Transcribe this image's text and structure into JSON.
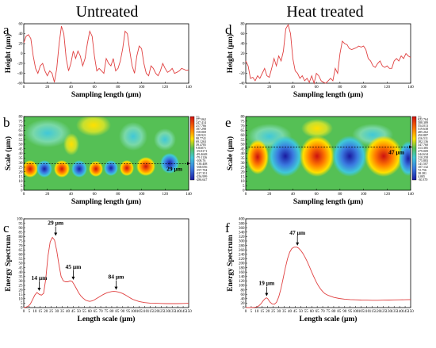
{
  "figure": {
    "columns": [
      "Untreated",
      "Heat treated"
    ],
    "panel_letters": [
      "a",
      "b",
      "c",
      "d",
      "e",
      "f"
    ]
  },
  "chart_data": [
    {
      "panel": "a",
      "type": "line",
      "xlabel": "Sampling length (μm)",
      "ylabel": "Height (μm)",
      "xlim": [
        0,
        140
      ],
      "ylim": [
        -60,
        60
      ],
      "xticks": [
        0,
        20,
        40,
        60,
        80,
        100,
        120,
        140
      ],
      "yticks": [
        -60,
        -40,
        -20,
        0,
        20,
        40,
        60
      ],
      "color": "#e04040",
      "x": [
        0,
        2,
        4,
        6,
        8,
        10,
        12,
        14,
        16,
        18,
        20,
        22,
        24,
        26,
        28,
        30,
        32,
        34,
        36,
        38,
        40,
        42,
        44,
        46,
        48,
        50,
        52,
        54,
        56,
        58,
        60,
        62,
        64,
        66,
        68,
        70,
        72,
        74,
        76,
        78,
        80,
        82,
        84,
        86,
        88,
        90,
        92,
        94,
        96,
        98,
        100,
        102,
        104,
        106,
        108,
        110,
        112,
        114,
        116,
        118,
        120,
        122,
        124,
        126,
        128,
        130,
        132,
        134,
        136,
        138,
        140
      ],
      "y": [
        22,
        35,
        38,
        30,
        -5,
        -30,
        -40,
        -25,
        -20,
        -35,
        -45,
        -35,
        -40,
        -58,
        -30,
        20,
        55,
        40,
        -10,
        -35,
        -20,
        5,
        -10,
        5,
        -5,
        -25,
        -10,
        20,
        45,
        35,
        -5,
        -35,
        -30,
        -35,
        -40,
        -10,
        -20,
        -25,
        -10,
        -35,
        -30,
        -15,
        10,
        45,
        40,
        5,
        -25,
        -40,
        -5,
        15,
        10,
        -20,
        -40,
        -45,
        -25,
        -30,
        -40,
        -45,
        -35,
        -20,
        -30,
        -38,
        -35,
        -30,
        -40,
        -38,
        -35,
        -30,
        -32,
        -34,
        -33
      ]
    },
    {
      "panel": "b",
      "type": "heatmap",
      "xlabel": "Sampling length (μm)",
      "ylabel": "Scale (μm)",
      "xlim": [
        0,
        140
      ],
      "ylim": [
        0,
        80
      ],
      "xticks": [
        0,
        20,
        40,
        60,
        80,
        100,
        120,
        140
      ],
      "yticks": [
        0,
        5,
        10,
        15,
        20,
        25,
        30,
        35,
        40,
        45,
        50,
        55,
        60,
        65,
        70,
        75,
        80
      ],
      "marker_label": "29 μm",
      "marker_scale": 29,
      "colorbar_title": "T3",
      "colorbar_ticks": [
        "277.062",
        "247.414",
        "217.766",
        "187.298",
        "158.069",
        "128.921",
        "98.7741",
        "69.1263",
        "39.4785",
        "9.83071",
        "-19.8171",
        "-49.4648",
        "-79.1126",
        "-108.76",
        "-138.408",
        "-168.056",
        "-197.704",
        "-227.351",
        "-256.999",
        "-286.647"
      ]
    },
    {
      "panel": "c",
      "type": "line",
      "xlabel": "Length scale (μm)",
      "ylabel": "Energy Spectrum",
      "xlim": [
        0,
        150
      ],
      "ylim": [
        0,
        100
      ],
      "xticks": [
        0,
        5,
        10,
        15,
        20,
        25,
        30,
        35,
        40,
        45,
        50,
        55,
        60,
        65,
        70,
        75,
        80,
        85,
        90,
        95,
        100,
        105,
        110,
        115,
        120,
        125,
        130,
        135,
        140,
        145,
        150
      ],
      "yticks": [
        0,
        5,
        10,
        15,
        20,
        25,
        30,
        35,
        40,
        45,
        50,
        55,
        60,
        65,
        70,
        75,
        80,
        85,
        90,
        95,
        100
      ],
      "color": "#e04040",
      "x": [
        0,
        2,
        4,
        6,
        8,
        10,
        12,
        14,
        16,
        18,
        20,
        22,
        24,
        26,
        28,
        30,
        32,
        34,
        36,
        38,
        40,
        42,
        44,
        46,
        48,
        50,
        52,
        54,
        56,
        58,
        60,
        62,
        64,
        66,
        68,
        70,
        72,
        74,
        76,
        78,
        80,
        82,
        84,
        86,
        88,
        90,
        92,
        94,
        96,
        98,
        100,
        105,
        110,
        115,
        120,
        125,
        130,
        135,
        140,
        145,
        150
      ],
      "y": [
        0,
        0.5,
        1.5,
        4,
        9,
        14,
        17,
        15,
        14,
        16,
        32,
        58,
        74,
        79,
        76,
        64,
        48,
        35,
        30,
        29,
        29,
        30,
        29.5,
        25.5,
        21,
        16.5,
        13,
        10.5,
        8.5,
        7.5,
        7,
        7.5,
        8.5,
        10,
        11.5,
        13,
        14.5,
        15.8,
        16.8,
        17.5,
        18,
        18.2,
        18,
        17.5,
        16.8,
        15.8,
        14.5,
        13,
        11.5,
        10,
        8.8,
        6.8,
        5.6,
        5,
        4.8,
        4.6,
        4.5,
        4.5,
        4.5,
        4.6,
        4.8
      ],
      "annotations": [
        {
          "label": "14 μm",
          "x": 14,
          "y": 17
        },
        {
          "label": "29 μm",
          "x": 29,
          "y": 79
        },
        {
          "label": "45 μm",
          "x": 45,
          "y": 29.5
        },
        {
          "label": "84 μm",
          "x": 84,
          "y": 18.2
        }
      ]
    },
    {
      "panel": "d",
      "type": "line",
      "xlabel": "Sampling length (μm)",
      "ylabel": "Height (μm)",
      "xlim": [
        0,
        140
      ],
      "ylim": [
        -40,
        80
      ],
      "xticks": [
        0,
        20,
        40,
        60,
        80,
        100,
        120,
        140
      ],
      "yticks": [
        -40,
        -20,
        0,
        20,
        40,
        60,
        80
      ],
      "color": "#e04040",
      "x": [
        0,
        2,
        4,
        6,
        8,
        10,
        12,
        14,
        16,
        18,
        20,
        22,
        24,
        26,
        28,
        30,
        32,
        34,
        36,
        38,
        40,
        42,
        44,
        46,
        48,
        50,
        52,
        54,
        56,
        58,
        60,
        62,
        64,
        66,
        68,
        70,
        72,
        74,
        76,
        78,
        80,
        82,
        84,
        86,
        88,
        90,
        92,
        94,
        96,
        98,
        100,
        102,
        104,
        106,
        108,
        110,
        112,
        114,
        116,
        118,
        120,
        122,
        124,
        126,
        128,
        130,
        132,
        134,
        136,
        138,
        140
      ],
      "y": [
        5,
        -5,
        -30,
        -28,
        -35,
        -25,
        -30,
        -20,
        -10,
        -25,
        -28,
        -10,
        10,
        -5,
        15,
        5,
        25,
        70,
        78,
        60,
        10,
        -15,
        -20,
        -30,
        -25,
        -35,
        -30,
        -38,
        -25,
        -40,
        -20,
        -25,
        -35,
        -38,
        -40,
        -35,
        -30,
        -35,
        -10,
        -20,
        20,
        45,
        40,
        38,
        30,
        28,
        30,
        32,
        35,
        33,
        35,
        28,
        10,
        5,
        -5,
        -8,
        0,
        5,
        -5,
        -8,
        -5,
        -10,
        -10,
        5,
        10,
        5,
        15,
        10,
        20,
        15,
        12
      ]
    },
    {
      "panel": "e",
      "type": "heatmap",
      "xlabel": "Sampling length (μm)",
      "ylabel": "Scale (μm)",
      "xlim": [
        0,
        140
      ],
      "ylim": [
        0,
        80
      ],
      "xticks": [
        0,
        20,
        40,
        60,
        80,
        100,
        120,
        140
      ],
      "yticks": [
        0,
        5,
        10,
        15,
        20,
        25,
        30,
        35,
        40,
        45,
        50,
        55,
        60,
        65,
        70,
        75,
        80
      ],
      "marker_label": "47 μm",
      "marker_scale": 47,
      "colorbar_title": "T3",
      "colorbar_ticks": [
        "622.764",
        "588.389",
        "554.013",
        "519.638",
        "485.262",
        "450.887",
        "416.511",
        "382.136",
        "347.760",
        "313.385",
        "279.009",
        "244.634",
        "210.258",
        "175.883",
        "141.507",
        "107.132",
        "72.756",
        "38.381",
        "4.005",
        "-30.370"
      ]
    },
    {
      "panel": "f",
      "type": "line",
      "xlabel": "Length scale (μm)",
      "ylabel": "Energy Spectrum",
      "xlim": [
        0,
        150
      ],
      "ylim": [
        0,
        400
      ],
      "xticks": [
        0,
        5,
        10,
        15,
        20,
        25,
        30,
        35,
        40,
        45,
        50,
        55,
        60,
        65,
        70,
        75,
        80,
        85,
        90,
        95,
        100,
        105,
        110,
        115,
        120,
        125,
        130,
        135,
        140,
        145,
        150
      ],
      "yticks": [
        0,
        20,
        40,
        60,
        80,
        100,
        120,
        140,
        160,
        180,
        200,
        220,
        240,
        260,
        280,
        300,
        320,
        340,
        360,
        380,
        400
      ],
      "color": "#e04040",
      "x": [
        0,
        5,
        8,
        10,
        12,
        14,
        16,
        18,
        19,
        20,
        22,
        24,
        26,
        28,
        30,
        32,
        34,
        36,
        38,
        40,
        42,
        44,
        46,
        47,
        48,
        50,
        52,
        54,
        56,
        58,
        60,
        62,
        64,
        66,
        68,
        70,
        72,
        75,
        80,
        85,
        90,
        95,
        100,
        105,
        110,
        115,
        120,
        125,
        130,
        135,
        140,
        145,
        150
      ],
      "y": [
        0,
        0,
        1,
        3,
        8,
        18,
        32,
        42,
        44,
        40,
        25,
        16,
        15,
        24,
        48,
        85,
        130,
        178,
        220,
        250,
        266,
        272,
        272,
        271,
        268,
        258,
        244,
        226,
        206,
        184,
        160,
        138,
        117,
        99,
        84,
        72,
        63,
        55,
        46,
        41,
        38,
        36,
        35,
        34,
        33.5,
        33,
        33,
        33.5,
        34,
        34.5,
        35,
        35.5,
        36
      ],
      "annotations": [
        {
          "label": "19 μm",
          "x": 19,
          "y": 44
        },
        {
          "label": "47 μm",
          "x": 47,
          "y": 272
        }
      ]
    }
  ]
}
